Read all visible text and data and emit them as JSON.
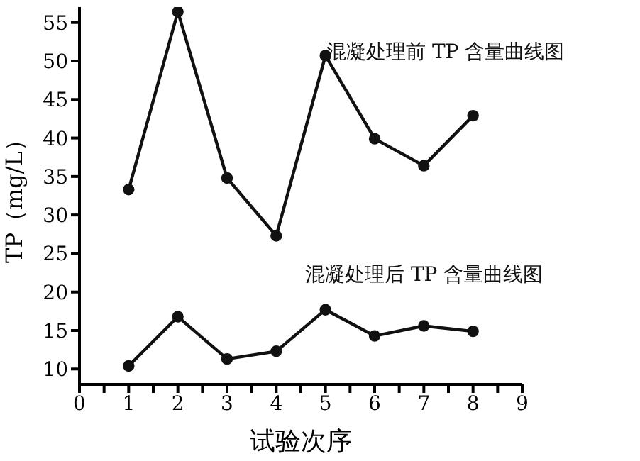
{
  "chart_data": {
    "type": "line",
    "xlabel": "试验次序",
    "ylabel": "TP（mg/L）",
    "x": [
      1,
      2,
      3,
      4,
      5,
      6,
      7,
      8
    ],
    "series": [
      {
        "name": "混凝处理前 TP 含量曲线图",
        "color": "#111111",
        "values": [
          33.3,
          56.4,
          34.8,
          27.3,
          50.7,
          39.9,
          36.4,
          42.9
        ]
      },
      {
        "name": "混凝处理后 TP 含量曲线图",
        "color": "#111111",
        "values": [
          10.4,
          16.8,
          11.3,
          12.3,
          17.7,
          14.3,
          15.6,
          14.9
        ]
      }
    ],
    "xlim": [
      0,
      9
    ],
    "xticks": [
      0,
      {
        "value": 0.5,
        "label": null
      },
      1,
      {
        "value": 1.5,
        "label": null
      },
      2,
      {
        "value": 2.5,
        "label": null
      },
      3,
      {
        "value": 3.5,
        "label": null
      },
      4,
      {
        "value": 4.5,
        "label": null
      },
      5,
      {
        "value": 5.5,
        "label": null
      },
      6,
      {
        "value": 6.5,
        "label": null
      },
      7,
      {
        "value": 7.5,
        "label": null
      },
      8,
      {
        "value": 8.5,
        "label": null
      },
      9
    ],
    "ylim": [
      8,
      57
    ],
    "yticks": [
      10,
      15,
      20,
      25,
      30,
      35,
      40,
      45,
      50,
      55
    ],
    "grid": false,
    "legend": false,
    "marker": "circle",
    "line_style": "solid"
  }
}
